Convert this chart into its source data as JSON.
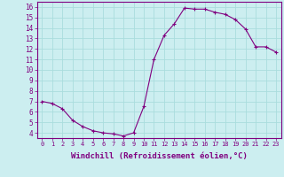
{
  "x": [
    0,
    1,
    2,
    3,
    4,
    5,
    6,
    7,
    8,
    9,
    10,
    11,
    12,
    13,
    14,
    15,
    16,
    17,
    18,
    19,
    20,
    21,
    22,
    23
  ],
  "y": [
    7.0,
    6.8,
    6.3,
    5.2,
    4.6,
    4.2,
    4.0,
    3.9,
    3.7,
    4.0,
    6.5,
    11.0,
    13.3,
    14.4,
    15.9,
    15.8,
    15.8,
    15.5,
    15.3,
    14.8,
    13.9,
    12.2,
    12.2,
    11.7
  ],
  "line_color": "#800080",
  "marker": "+",
  "marker_size": 3,
  "marker_linewidth": 0.8,
  "line_width": 0.8,
  "xlabel": "Windchill (Refroidissement éolien,°C)",
  "xlabel_fontsize": 6.5,
  "xtick_labels": [
    "0",
    "1",
    "2",
    "3",
    "4",
    "5",
    "6",
    "7",
    "8",
    "9",
    "10",
    "11",
    "12",
    "13",
    "14",
    "15",
    "16",
    "17",
    "18",
    "19",
    "20",
    "21",
    "22",
    "23"
  ],
  "ytick_vals": [
    4,
    5,
    6,
    7,
    8,
    9,
    10,
    11,
    12,
    13,
    14,
    15,
    16
  ],
  "ytick_labels": [
    "4",
    "5",
    "6",
    "7",
    "8",
    "9",
    "10",
    "11",
    "12",
    "13",
    "14",
    "15",
    "16"
  ],
  "ylim": [
    3.5,
    16.5
  ],
  "xlim": [
    -0.5,
    23.5
  ],
  "bg_color": "#cceef0",
  "grid_color": "#aadddd",
  "tick_color": "#800080",
  "label_color": "#800080",
  "spine_color": "#800080",
  "xtick_fontsize": 5.0,
  "ytick_fontsize": 5.5
}
